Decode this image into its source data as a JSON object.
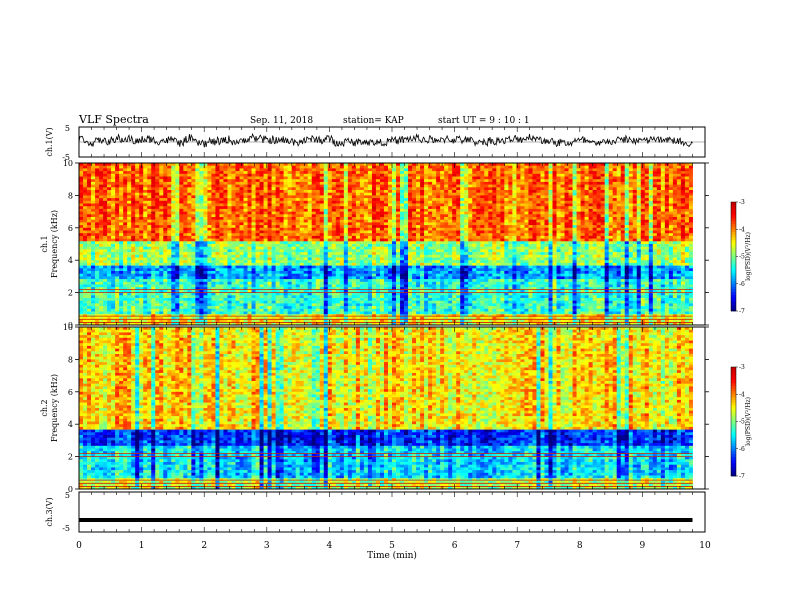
{
  "header": {
    "title": "VLF Spectra",
    "date": "Sep. 11, 2018",
    "station": "station= KAP",
    "start": "start  UT =   9 : 10 : 1"
  },
  "chart_data": [
    {
      "type": "line",
      "title": "",
      "ylabel": "ch.1(V)",
      "ylim": [
        -5,
        5
      ],
      "yticks": [
        "5",
        "-5"
      ],
      "xlim": [
        0,
        10
      ],
      "description_values": "noisy waveform centered near 0 V, amplitude roughly ±2 V",
      "series": [
        {
          "x_range": [
            0,
            9.8
          ],
          "mean": 0.5,
          "spread": 1.8
        }
      ]
    },
    {
      "type": "heatmap",
      "ylabel": "ch.1\nFrequency (kHz)",
      "ylabel_lines": [
        "ch.1",
        "Frequency (kHz)"
      ],
      "ylim": [
        0,
        10
      ],
      "yticks": [
        "0",
        "2",
        "4",
        "6",
        "8",
        "10"
      ],
      "xlim": [
        0,
        10
      ],
      "colorbar": {
        "label": "log(PSD)(V²/Hz)",
        "ticks": [
          "-3",
          "-4",
          "-5",
          "-6",
          "-7"
        ],
        "range": [
          -7,
          -3
        ]
      },
      "bands": [
        {
          "from": 0,
          "to": 0.6,
          "level": -4.5
        },
        {
          "from": 0.6,
          "to": 2.9,
          "level": -5.3
        },
        {
          "from": 2.9,
          "to": 3.6,
          "level": -5.9
        },
        {
          "from": 3.6,
          "to": 5.2,
          "level": -4.9
        },
        {
          "from": 5.2,
          "to": 10,
          "level": -3.9
        }
      ]
    },
    {
      "type": "heatmap",
      "ylabel": "ch.2\nFrequency (kHz)",
      "ylabel_lines": [
        "ch.2",
        "Frequency (kHz)"
      ],
      "ylim": [
        0,
        10
      ],
      "yticks": [
        "0",
        "2",
        "4",
        "6",
        "8",
        "10"
      ],
      "xlim": [
        0,
        10
      ],
      "colorbar": {
        "label": "log(PSD)(V²/Hz)",
        "ticks": [
          "-3",
          "-4",
          "-5",
          "-6",
          "-7"
        ],
        "range": [
          -7,
          -3
        ]
      },
      "bands": [
        {
          "from": 0,
          "to": 0.6,
          "level": -4.8
        },
        {
          "from": 0.6,
          "to": 2.6,
          "level": -5.6
        },
        {
          "from": 2.6,
          "to": 3.6,
          "level": -6.3
        },
        {
          "from": 3.6,
          "to": 10,
          "level": -4.4
        }
      ]
    },
    {
      "type": "line",
      "ylabel": "ch.3(V)",
      "ylim": [
        -5,
        5
      ],
      "yticks": [
        "5",
        "-5"
      ],
      "xlim": [
        0,
        10
      ],
      "xlabel": "Time (min)",
      "xticks": [
        "0",
        "1",
        "2",
        "3",
        "4",
        "5",
        "6",
        "7",
        "8",
        "9",
        "10"
      ],
      "series": [
        {
          "x_range": [
            0,
            9.8
          ],
          "value": -2.0
        }
      ]
    }
  ]
}
